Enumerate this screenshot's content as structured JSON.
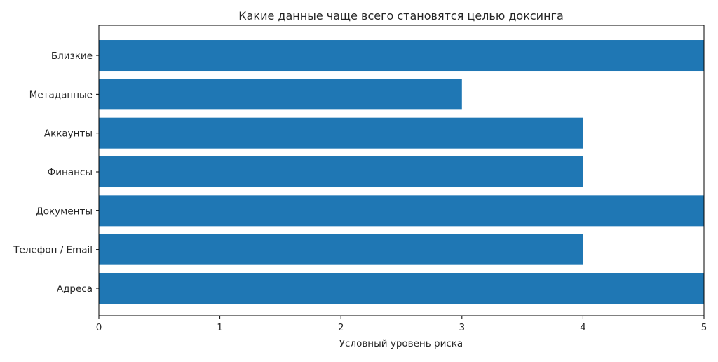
{
  "chart_data": {
    "type": "bar",
    "orientation": "horizontal",
    "title": "Какие данные чаще всего становятся целью доксинга",
    "xlabel": "Условный уровень риска",
    "ylabel": "",
    "categories": [
      "Адреса",
      "Телефон / Email",
      "Документы",
      "Финансы",
      "Аккаунты",
      "Метаданные",
      "Близкие"
    ],
    "values": [
      5,
      4,
      5,
      4,
      4,
      3,
      5
    ],
    "xlim": [
      0,
      5
    ],
    "xticks": [
      "0",
      "1",
      "2",
      "3",
      "4",
      "5"
    ],
    "bar_color": "#1f77b4",
    "grid": false,
    "legend": "none"
  }
}
